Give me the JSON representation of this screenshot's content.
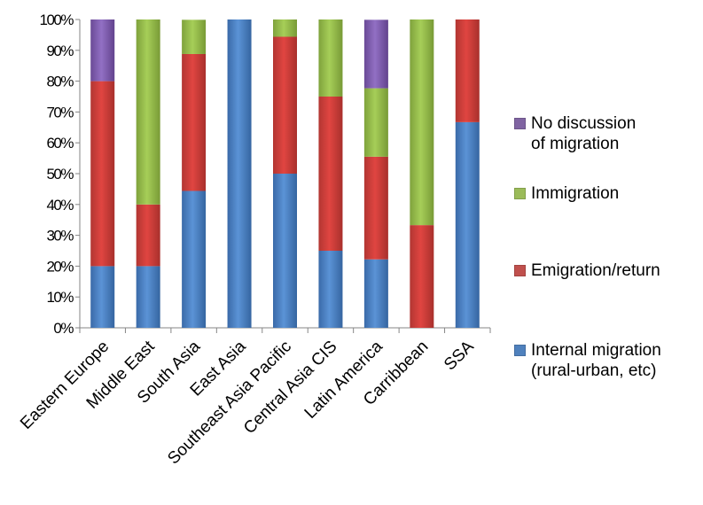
{
  "chart_data": {
    "type": "bar",
    "stacked": true,
    "title": "",
    "xlabel": "",
    "ylabel": "",
    "ylim": [
      0,
      100
    ],
    "y_ticks": [
      "0%",
      "10%",
      "20%",
      "30%",
      "40%",
      "50%",
      "60%",
      "70%",
      "80%",
      "90%",
      "100%"
    ],
    "categories": [
      "Eastern Europe",
      "Middle East",
      "South Asia",
      "East Asia",
      "Southeast Asia Pacific",
      "Central Asia CIS",
      "Latin America",
      "Carribbean",
      "SSA"
    ],
    "series": [
      {
        "name": "Internal migration\n(rural-urban, etc)",
        "color": "#4f81bd",
        "values": [
          20,
          20,
          44.4,
          100,
          50,
          25,
          22.2,
          0,
          66.7
        ]
      },
      {
        "name": "Emigration/return",
        "color": "#c0504d",
        "values": [
          60,
          20,
          44.4,
          0,
          44.4,
          50,
          33.3,
          33.3,
          33.3
        ]
      },
      {
        "name": "Immigration",
        "color": "#9bbb59",
        "values": [
          0,
          60,
          11.1,
          0,
          5.6,
          25,
          22.2,
          66.7,
          0
        ]
      },
      {
        "name": "No discussion\nof migration",
        "color": "#8064a2",
        "values": [
          20,
          0,
          0,
          0,
          0,
          0,
          22.2,
          0,
          0
        ]
      }
    ],
    "grid": false,
    "legend_position": "right"
  }
}
